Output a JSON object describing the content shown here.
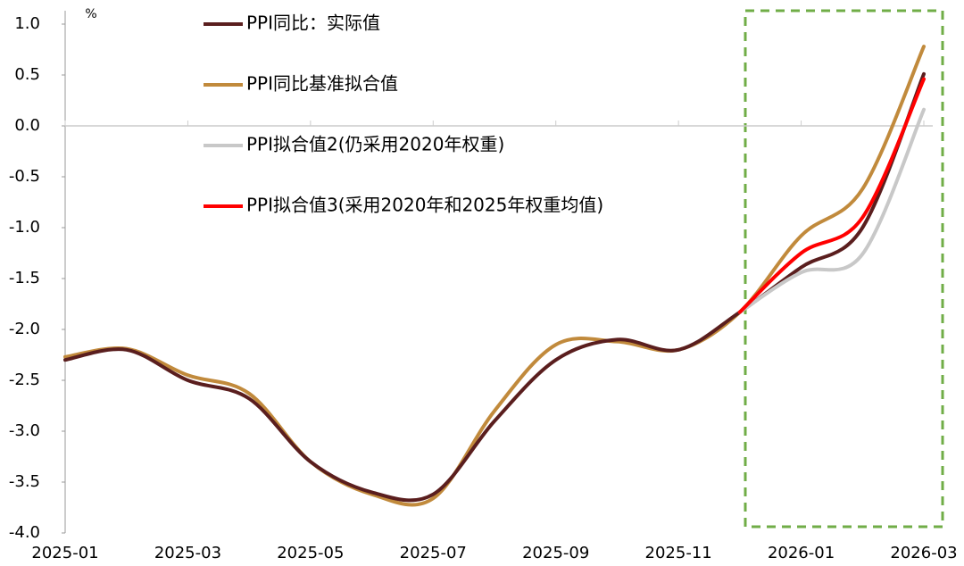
{
  "chart_data": {
    "type": "line",
    "y_unit": "%",
    "categories": [
      "2025-01",
      null,
      "2025-03",
      null,
      "2025-05",
      null,
      "2025-07",
      null,
      "2025-09",
      null,
      "2025-11",
      null,
      "2026-01",
      null,
      "2026-03"
    ],
    "series": [
      {
        "name": "PPI同比：实际值",
        "color": "#5a1e1e",
        "values": [
          -2.3,
          -2.2,
          -2.5,
          -2.68,
          -3.3,
          -3.6,
          -3.62,
          -2.9,
          -2.3,
          -2.1,
          -2.2,
          -1.83,
          -1.39,
          -1.0,
          0.51
        ]
      },
      {
        "name": "PPI同比基准拟合值",
        "color": "#c18a3c",
        "values": [
          -2.27,
          -2.19,
          -2.45,
          -2.63,
          -3.3,
          -3.62,
          -3.66,
          -2.8,
          -2.15,
          -2.12,
          -2.2,
          -1.83,
          -1.08,
          -0.62,
          0.78
        ]
      },
      {
        "name": "PPI拟合值2(仍采用2020年权重)",
        "color": "#c8c8c8",
        "values": [
          null,
          null,
          null,
          null,
          null,
          null,
          null,
          null,
          null,
          null,
          null,
          -1.83,
          -1.44,
          -1.26,
          0.16
        ]
      },
      {
        "name": "PPI拟合值3(采用2020年和2025年权重均值)",
        "color": "#ff0000",
        "values": [
          null,
          null,
          null,
          null,
          null,
          null,
          null,
          null,
          null,
          null,
          null,
          -1.83,
          -1.25,
          -0.9,
          0.46
        ]
      }
    ],
    "ylim": [
      -4.0,
      1.0
    ],
    "yticks": [
      {
        "value": 1.0,
        "label": "1.0"
      },
      0.5,
      {
        "value": 0.0,
        "label": "0.0"
      },
      -0.5,
      {
        "value": -1.0,
        "label": "-1.0"
      },
      -1.5,
      {
        "value": -2.0,
        "label": "-2.0"
      },
      -2.5,
      {
        "value": -3.0,
        "label": "-3.0"
      },
      -3.5,
      {
        "value": -4.0,
        "label": "-4.0"
      }
    ]
  }
}
